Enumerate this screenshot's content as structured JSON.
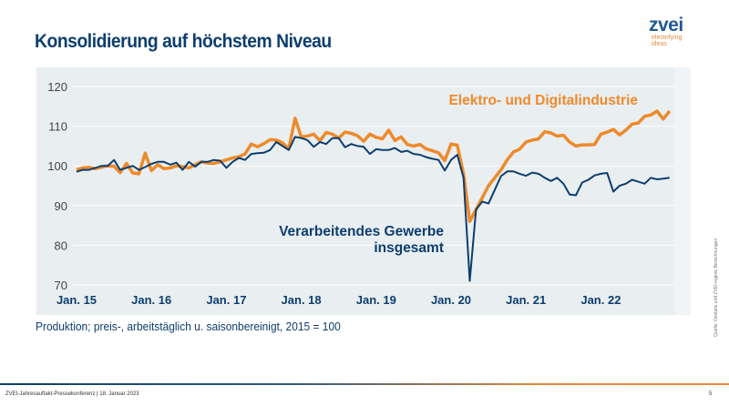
{
  "slide": {
    "title": "Konsolidierung auf höchstem Niveau",
    "logo": {
      "word": "zvei",
      "tagline_1": "electrifying",
      "tagline_2": "ideas"
    },
    "note": "Produktion; preis-, arbeitstäglich u. saisonbereinigt, 2015 = 100",
    "source": "Quelle: Destatis und ZVEI-eigene Berechnungen",
    "footer": "ZVEI-Jahresauftakt-Pressekonferenz | 18. Januar 2023",
    "page_number": "5"
  },
  "colors": {
    "orange": "#ee8a2b",
    "blue": "#0d3e6e",
    "background": "#e9eef1",
    "grid": "#ffffff"
  },
  "chart_data": {
    "type": "line",
    "title": "",
    "xlabel": "",
    "ylabel": "",
    "ylim": [
      70,
      120
    ],
    "yticks": [
      70,
      80,
      90,
      100,
      110,
      120
    ],
    "grid": "horizontal",
    "x_start": "2015-01",
    "x_end": "2022-12",
    "xtick_labels": [
      "Jan. 15",
      "Jan. 16",
      "Jan. 17",
      "Jan. 18",
      "Jan. 19",
      "Jan. 20",
      "Jan. 21",
      "Jan. 22"
    ],
    "series": [
      {
        "name": "Elektro- und Digitalindustrie",
        "color": "#ee8a2b",
        "values": [
          99,
          99.5,
          99.6,
          99.3,
          99.7,
          100,
          99.9,
          98.3,
          100.6,
          98.2,
          98,
          103.2,
          98.8,
          100.3,
          99.3,
          99.5,
          100,
          99.8,
          99.5,
          100.3,
          101,
          100.7,
          100.6,
          101,
          101.5,
          102,
          102.3,
          103,
          105.5,
          104.8,
          105.6,
          106.6,
          106.5,
          105.8,
          104.3,
          112,
          107.3,
          107.5,
          108,
          106.3,
          108.4,
          108,
          107,
          108.5,
          108.2,
          107.6,
          106.2,
          108,
          107.2,
          106.8,
          109,
          106.4,
          107.3,
          105.4,
          105,
          105.4,
          104.3,
          103.8,
          103.3,
          101.3,
          105.5,
          105.2,
          98,
          86,
          89,
          92,
          95,
          97,
          99,
          101.5,
          103.5,
          104.2,
          106,
          106.5,
          106.8,
          108.6,
          108.3,
          107.5,
          107.7,
          106,
          105,
          105.3,
          105.3,
          105.4,
          108,
          108.5,
          109.2,
          107.8,
          109,
          110.5,
          110.8,
          112.5,
          112.8,
          113.8,
          111.8,
          113.8
        ]
      },
      {
        "name": "Verarbeitendes Gewerbe insgesamt",
        "color": "#0d3e6e",
        "values": [
          98.5,
          99,
          99,
          99.5,
          100,
          100,
          101.5,
          99,
          99.5,
          100,
          99,
          99.7,
          100.5,
          101,
          101,
          100.3,
          100.8,
          99,
          101,
          99.8,
          101,
          101,
          101.5,
          101.3,
          99.5,
          101,
          102,
          101.5,
          103,
          103.2,
          103.3,
          104,
          106,
          105,
          104,
          107.3,
          107,
          106.5,
          104.8,
          106,
          105.5,
          107,
          107,
          104.7,
          105.5,
          105,
          104.8,
          103,
          104.2,
          104,
          104,
          104.5,
          103.5,
          103.8,
          103,
          102.8,
          102.2,
          101.8,
          101.5,
          98.8,
          101.5,
          102.8,
          97,
          71,
          89,
          91,
          90.5,
          94,
          97.4,
          98.6,
          98.6,
          98,
          97.5,
          98.3,
          98,
          97,
          96.2,
          97,
          95.5,
          92.8,
          92.6,
          95.8,
          96.5,
          97.6,
          98,
          98.2,
          93.5,
          95,
          95.5,
          96.5,
          96,
          95.5,
          97,
          96.6,
          96.8,
          97
        ]
      }
    ],
    "annotations": [
      "Elektro- und Digitalindustrie",
      "Verarbeitendes Gewerbe",
      "insgesamt"
    ]
  }
}
